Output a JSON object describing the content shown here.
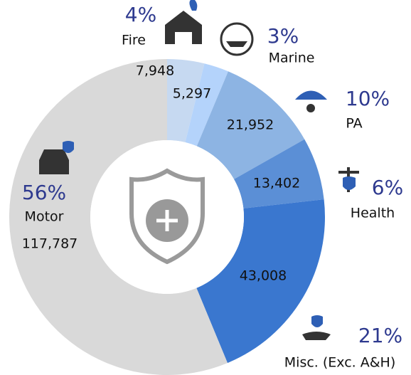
{
  "chart_data": {
    "type": "donut",
    "categories": [
      "Fire",
      "Marine",
      "PA",
      "Health",
      "Misc. (Exc. A&H)",
      "Motor"
    ],
    "values": [
      7948,
      5297,
      21952,
      13402,
      43008,
      117787
    ],
    "value_labels": [
      "7,948",
      "5,297",
      "21,952",
      "13,402",
      "43,008",
      "117,787"
    ],
    "percent_labels": [
      "4%",
      "3%",
      "10%",
      "6%",
      "21%",
      "56%"
    ],
    "colors": [
      "#c6d9f1",
      "#b4d3fb",
      "#8db4e3",
      "#5b8fd6",
      "#3a77cf",
      "#d9d9d9"
    ]
  }
}
